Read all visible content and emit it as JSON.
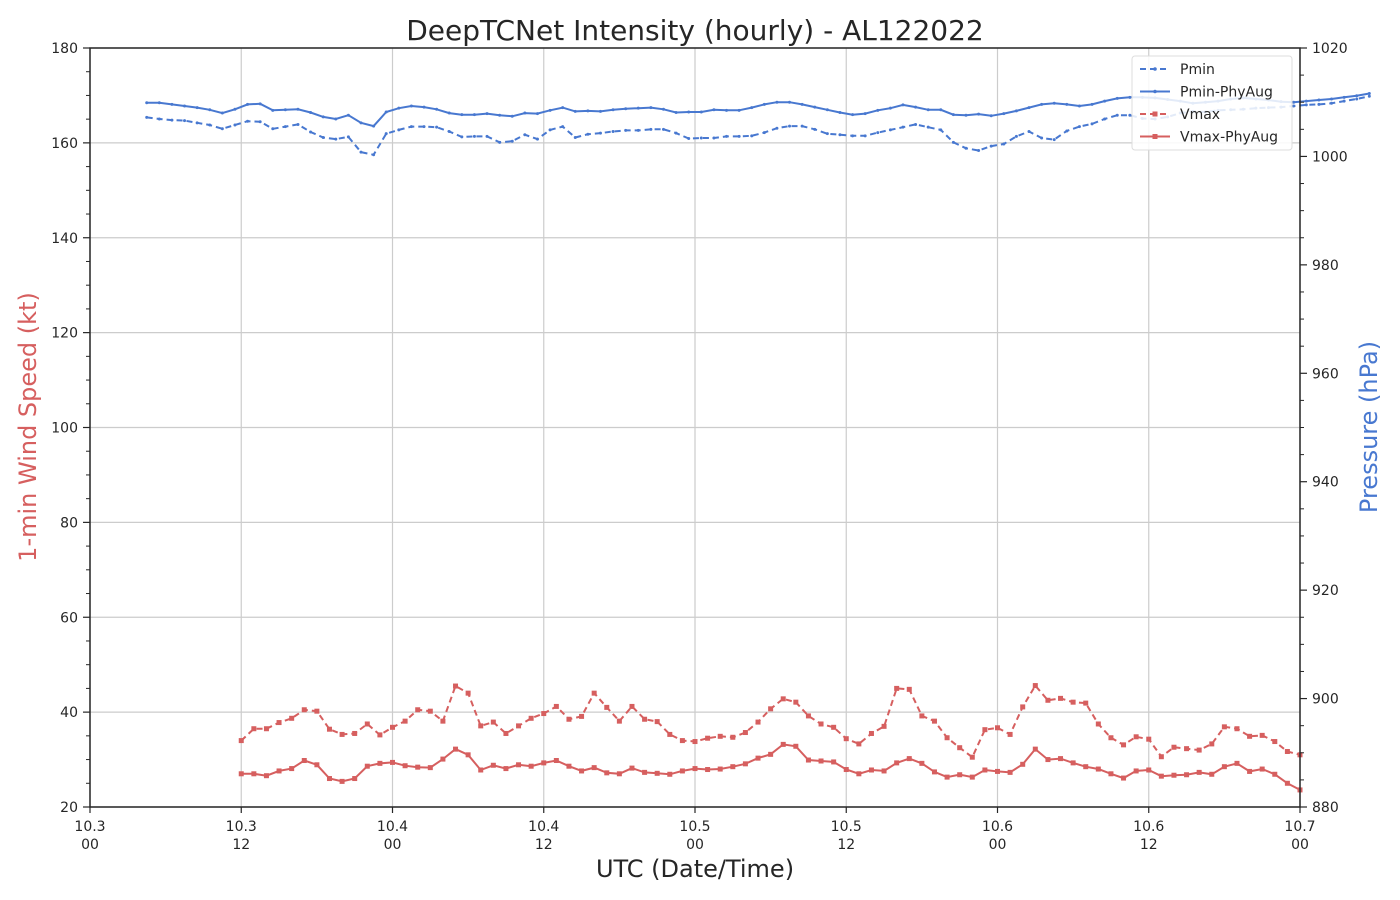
{
  "chart_data": {
    "type": "line",
    "title": "DeepTCNet Intensity (hourly) - AL122022",
    "xlabel": "UTC (Date/Time)",
    "ylabel_left": "1-min Wind Speed (kt)",
    "ylabel_right": "Pressure (hPa)",
    "x_unit": "hours",
    "x_range": [
      0,
      96
    ],
    "x_ticks": [
      {
        "x": 0,
        "date": "10.3",
        "hour": "00"
      },
      {
        "x": 12,
        "date": "10.3",
        "hour": "12"
      },
      {
        "x": 24,
        "date": "10.4",
        "hour": "00"
      },
      {
        "x": 36,
        "date": "10.4",
        "hour": "12"
      },
      {
        "x": 48,
        "date": "10.5",
        "hour": "00"
      },
      {
        "x": 60,
        "date": "10.5",
        "hour": "12"
      },
      {
        "x": 72,
        "date": "10.6",
        "hour": "00"
      },
      {
        "x": 84,
        "date": "10.6",
        "hour": "12"
      },
      {
        "x": 96,
        "date": "10.7",
        "hour": "00"
      }
    ],
    "ylim_left": [
      20,
      180
    ],
    "yticks_left": [
      20,
      40,
      60,
      80,
      100,
      120,
      140,
      160,
      180
    ],
    "ylim_right": [
      880,
      1020
    ],
    "yticks_right": [
      880,
      900,
      920,
      940,
      960,
      980,
      1000,
      1020
    ],
    "grid": true,
    "legend_position": "top-right",
    "colors": {
      "wind": "#d65f5f",
      "pressure": "#4878d0",
      "axis": "#262626",
      "grid": "#cccccc"
    },
    "series": [
      {
        "name": "Pmin",
        "axis": "right",
        "style": "dashed",
        "color": "#4878d0",
        "x_start": 4.5,
        "values": [
          1007.2,
          1006.9,
          1006.7,
          1006.6,
          1006.2,
          1005.8,
          1005.1,
          1005.8,
          1006.5,
          1006.4,
          1005.1,
          1005.5,
          1005.9,
          1004.5,
          1003.5,
          1003.2,
          1003.6,
          1000.8,
          1000.3,
          1004.2,
          1004.9,
          1005.5,
          1005.5,
          1005.4,
          1004.6,
          1003.6,
          1003.7,
          1003.7,
          1002.6,
          1002.8,
          1004.0,
          1003.2,
          1004.9,
          1005.5,
          1003.5,
          1004.1,
          1004.3,
          1004.6,
          1004.8,
          1004.8,
          1005.0,
          1005.0,
          1004.3,
          1003.3,
          1003.4,
          1003.4,
          1003.7,
          1003.7,
          1003.8,
          1004.4,
          1005.2,
          1005.6,
          1005.6,
          1005.0,
          1004.2,
          1004.0,
          1003.8,
          1003.8,
          1004.4,
          1004.9,
          1005.4,
          1005.9,
          1005.4,
          1004.9,
          1002.6,
          1001.5,
          1001.1,
          1001.9,
          1002.3,
          1003.7,
          1004.6,
          1003.4,
          1003.1,
          1004.7,
          1005.5,
          1006.0,
          1006.9,
          1007.6,
          1007.6,
          1007.0,
          1006.9,
          1007.3,
          1008.0,
          1008.3,
          1008.2,
          1008.5,
          1008.6,
          1008.7,
          1008.9,
          1009.0,
          1009.1,
          1009.3,
          1009.5,
          1009.6,
          1009.8,
          1010.2,
          1010.6,
          1011.1
        ]
      },
      {
        "name": "Pmin-PhyAug",
        "axis": "right",
        "style": "solid",
        "color": "#4878d0",
        "x_start": 4.5,
        "values": [
          1009.9,
          1009.9,
          1009.6,
          1009.3,
          1009.0,
          1008.6,
          1008.0,
          1008.7,
          1009.6,
          1009.7,
          1008.5,
          1008.6,
          1008.7,
          1008.1,
          1007.3,
          1006.9,
          1007.6,
          1006.2,
          1005.6,
          1008.2,
          1008.9,
          1009.3,
          1009.1,
          1008.7,
          1008.0,
          1007.7,
          1007.7,
          1007.9,
          1007.6,
          1007.4,
          1008.0,
          1007.9,
          1008.5,
          1009.0,
          1008.3,
          1008.4,
          1008.3,
          1008.6,
          1008.8,
          1008.9,
          1009.0,
          1008.7,
          1008.1,
          1008.2,
          1008.2,
          1008.6,
          1008.5,
          1008.5,
          1009.0,
          1009.6,
          1010.0,
          1010.0,
          1009.6,
          1009.1,
          1008.6,
          1008.1,
          1007.7,
          1007.9,
          1008.5,
          1008.9,
          1009.5,
          1009.1,
          1008.6,
          1008.6,
          1007.7,
          1007.6,
          1007.8,
          1007.5,
          1007.9,
          1008.4,
          1009.0,
          1009.6,
          1009.8,
          1009.6,
          1009.3,
          1009.6,
          1010.2,
          1010.7,
          1010.9,
          1010.9,
          1010.8,
          1010.5,
          1010.2,
          1009.8,
          1010.0,
          1010.2,
          1010.6,
          1010.8,
          1010.6,
          1010.4,
          1010.1,
          1010.0,
          1010.2,
          1010.4,
          1010.6,
          1010.9,
          1011.2,
          1011.6
        ]
      },
      {
        "name": "Vmax",
        "axis": "left",
        "style": "dashed",
        "color": "#d65f5f",
        "x_start": 12,
        "values": [
          34,
          36.5,
          36.5,
          37.8,
          38.7,
          40.5,
          40.2,
          36.4,
          35.3,
          35.5,
          37.5,
          35.2,
          36.8,
          38.1,
          40.5,
          40.2,
          38.1,
          45.5,
          44,
          37.1,
          37.9,
          35.5,
          37.1,
          38.7,
          39.7,
          41.2,
          38.5,
          39.1,
          44,
          41,
          38.1,
          41.2,
          38.5,
          38,
          35.3,
          34,
          33.8,
          34.5,
          34.9,
          34.7,
          35.7,
          37.9,
          40.7,
          42.8,
          42.1,
          39.2,
          37.5,
          36.8,
          34.4,
          33.3,
          35.5,
          37,
          45,
          44.8,
          39.2,
          38.1,
          34.6,
          32.5,
          30.5,
          36.3,
          36.7,
          35.3,
          41.1,
          45.6,
          42.5,
          42.9,
          42.1,
          41.9,
          37.5,
          34.6,
          33.1,
          34.8,
          34.3,
          30.6,
          32.6,
          32.3,
          32,
          33.3,
          36.9,
          36.5,
          34.9,
          35.1,
          33.8,
          31.7,
          31
        ]
      },
      {
        "name": "Vmax-PhyAug",
        "axis": "left",
        "style": "solid",
        "color": "#d65f5f",
        "x_start": 12,
        "values": [
          27,
          27,
          26.6,
          27.6,
          28.1,
          29.8,
          28.9,
          26,
          25.4,
          26,
          28.6,
          29.2,
          29.4,
          28.7,
          28.4,
          28.3,
          30.1,
          32.2,
          31,
          27.8,
          28.8,
          28.1,
          28.9,
          28.6,
          29.3,
          29.8,
          28.6,
          27.6,
          28.3,
          27.2,
          27,
          28.2,
          27.3,
          27.1,
          26.9,
          27.6,
          28.1,
          27.9,
          28,
          28.5,
          29.1,
          30.3,
          31.1,
          33.2,
          32.8,
          29.9,
          29.7,
          29.5,
          27.9,
          27,
          27.8,
          27.6,
          29.3,
          30.2,
          29.2,
          27.4,
          26.3,
          26.8,
          26.3,
          27.8,
          27.5,
          27.3,
          29,
          32.2,
          30,
          30.2,
          29.3,
          28.5,
          28,
          27,
          26.1,
          27.6,
          27.8,
          26.5,
          26.7,
          26.8,
          27.3,
          26.9,
          28.5,
          29.2,
          27.5,
          28,
          26.9,
          25,
          23.6
        ]
      }
    ]
  }
}
